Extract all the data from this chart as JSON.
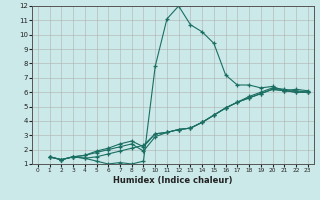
{
  "xlabel": "Humidex (Indice chaleur)",
  "background_color": "#cce9e9",
  "grid_color": "#b0b0b0",
  "line_color": "#1a6e62",
  "xlim": [
    -0.5,
    23.5
  ],
  "ylim": [
    1,
    12
  ],
  "xticks": [
    0,
    1,
    2,
    3,
    4,
    5,
    6,
    7,
    8,
    9,
    10,
    11,
    12,
    13,
    14,
    15,
    16,
    17,
    18,
    19,
    20,
    21,
    22,
    23
  ],
  "yticks": [
    1,
    2,
    3,
    4,
    5,
    6,
    7,
    8,
    9,
    10,
    11,
    12
  ],
  "line1_x": [
    1,
    2,
    3,
    4,
    5,
    6,
    7,
    8,
    9,
    10,
    11,
    12,
    13,
    14,
    15,
    16,
    17,
    18,
    19,
    20,
    21,
    22,
    23
  ],
  "line1_y": [
    1.5,
    1.3,
    1.5,
    1.4,
    1.2,
    1.0,
    1.1,
    1.0,
    1.2,
    7.8,
    11.1,
    12.0,
    10.7,
    10.2,
    9.4,
    7.2,
    6.5,
    6.5,
    6.3,
    6.4,
    6.1,
    6.2,
    6.1
  ],
  "line2_x": [
    1,
    2,
    3,
    4,
    5,
    6,
    7,
    8,
    9,
    10,
    11,
    12,
    13,
    14,
    15,
    16,
    17,
    18,
    19,
    20,
    21,
    22,
    23
  ],
  "line2_y": [
    1.5,
    1.3,
    1.5,
    1.4,
    1.5,
    1.7,
    1.9,
    2.1,
    2.3,
    3.1,
    3.2,
    3.4,
    3.5,
    3.9,
    4.4,
    4.9,
    5.3,
    5.6,
    5.9,
    6.2,
    6.1,
    6.0,
    6.0
  ],
  "line3_x": [
    1,
    2,
    3,
    4,
    5,
    6,
    7,
    8,
    9,
    10,
    11,
    12,
    13,
    14,
    15,
    16,
    17,
    18,
    19,
    20,
    21,
    22,
    23
  ],
  "line3_y": [
    1.5,
    1.3,
    1.5,
    1.6,
    1.8,
    2.0,
    2.2,
    2.4,
    1.9,
    2.9,
    3.2,
    3.4,
    3.5,
    3.9,
    4.4,
    4.9,
    5.3,
    5.6,
    5.9,
    6.2,
    6.1,
    6.0,
    6.0
  ],
  "line4_x": [
    1,
    2,
    3,
    4,
    5,
    6,
    7,
    8,
    9,
    10,
    11,
    12,
    13,
    14,
    15,
    16,
    17,
    18,
    19,
    20,
    21,
    22,
    23
  ],
  "line4_y": [
    1.5,
    1.3,
    1.5,
    1.6,
    1.9,
    2.1,
    2.4,
    2.6,
    2.2,
    3.1,
    3.2,
    3.4,
    3.5,
    3.9,
    4.4,
    4.9,
    5.3,
    5.7,
    6.0,
    6.3,
    6.2,
    6.1,
    6.0
  ]
}
